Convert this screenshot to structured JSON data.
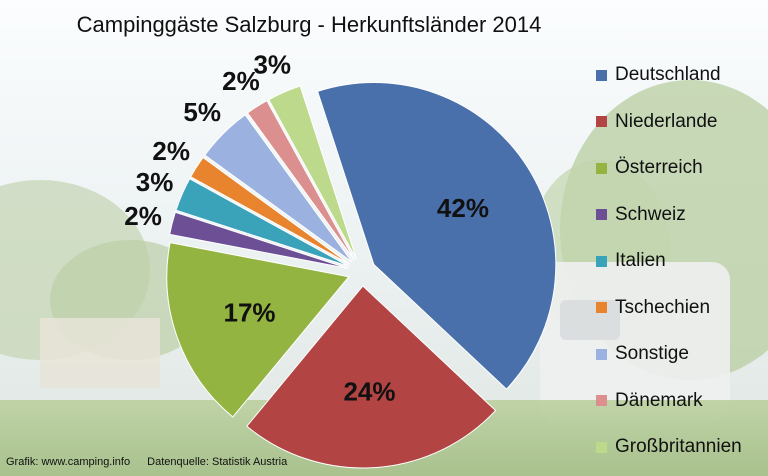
{
  "chart_data": {
    "type": "pie",
    "title": "Campinggäste Salzburg - Herkunftsländer 2014",
    "legend_position": "right",
    "slices": [
      {
        "label": "Deutschland",
        "value": 42,
        "display": "42%",
        "color": "#4a70ab"
      },
      {
        "label": "Niederlande",
        "value": 24,
        "display": "24%",
        "color": "#b34444"
      },
      {
        "label": "Österreich",
        "value": 17,
        "display": "17%",
        "color": "#93b441"
      },
      {
        "label": "Schweiz",
        "value": 2,
        "display": "2%",
        "color": "#6d4f96"
      },
      {
        "label": "Italien",
        "value": 3,
        "display": "3%",
        "color": "#3aa2b9"
      },
      {
        "label": "Tschechien",
        "value": 2,
        "display": "2%",
        "color": "#e8842e"
      },
      {
        "label": "Sonstige",
        "value": 5,
        "display": "5%",
        "color": "#9bb2e0"
      },
      {
        "label": "Dänemark",
        "value": 2,
        "display": "2%",
        "color": "#dc8f8f"
      },
      {
        "label": "Großbritannien",
        "value": 3,
        "display": "3%",
        "color": "#bcd98c"
      }
    ]
  },
  "credits": {
    "graphic": "Grafik: www.camping.info",
    "source": "Datenquelle: Statistik Austria"
  }
}
